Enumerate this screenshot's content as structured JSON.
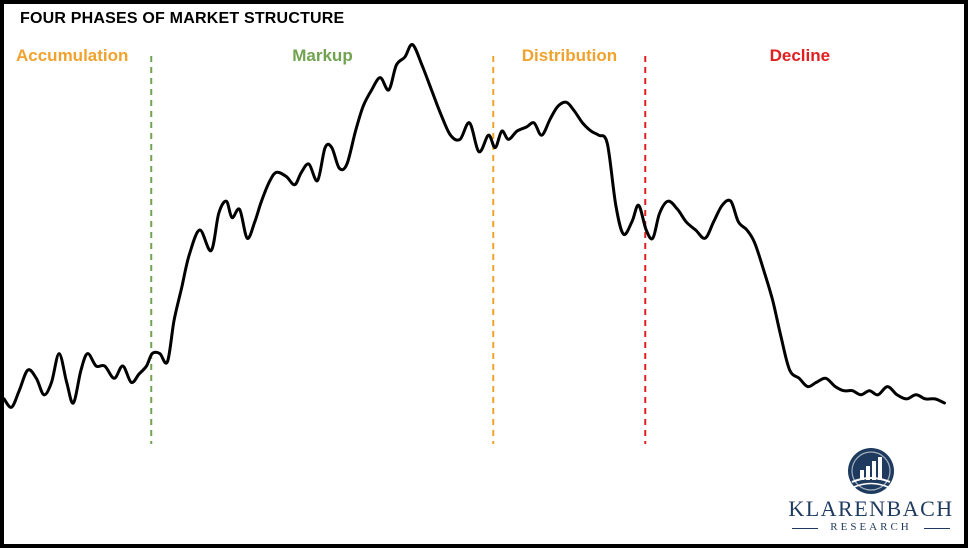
{
  "chart_data": {
    "type": "line",
    "title": "FOUR PHASES OF MARKET STRUCTURE",
    "xlabel": "",
    "ylabel": "",
    "xlim": [
      0,
      100
    ],
    "ylim": [
      0,
      100
    ],
    "grid": false,
    "axes_visible": false,
    "phases": [
      {
        "label": "Accumulation",
        "color": "#f0a22e",
        "start": 0
      },
      {
        "label": "Markup",
        "color": "#70a350",
        "start": 15.5
      },
      {
        "label": "Distribution",
        "color": "#f0a22e",
        "start": 51.5
      },
      {
        "label": "Decline",
        "color": "#e02020",
        "start": 67.5
      }
    ],
    "phase_dividers": [
      {
        "x": 15.5,
        "color": "#70a350"
      },
      {
        "x": 51.5,
        "color": "#f0a22e"
      },
      {
        "x": 67.5,
        "color": "#e02020"
      }
    ],
    "series": [
      {
        "color": "#000000",
        "x": [
          0,
          0.8,
          1.6,
          2.5,
          3.4,
          4.2,
          5.0,
          5.8,
          6.6,
          7.3,
          8.1,
          8.8,
          9.7,
          10.6,
          11.6,
          12.5,
          13.4,
          14.2,
          15.0,
          15.6,
          16.4,
          17.2,
          17.9,
          18.7,
          19.5,
          20.6,
          21.8,
          22.6,
          23.4,
          24.0,
          24.8,
          25.6,
          26.4,
          27.1,
          28.0,
          28.7,
          29.7,
          30.6,
          31.3,
          32.1,
          33.0,
          33.8,
          34.5,
          35.3,
          36.1,
          37.0,
          37.8,
          38.7,
          39.6,
          40.5,
          41.3,
          42.2,
          43.0,
          44.0,
          45.0,
          46.0,
          47.0,
          48.0,
          49.0,
          50.0,
          51.0,
          51.7,
          52.4,
          53.1,
          54.0,
          55.0,
          55.8,
          56.6,
          57.5,
          58.3,
          59.2,
          60.0,
          60.9,
          61.8,
          62.6,
          63.5,
          64.4,
          65.2,
          66.1,
          66.8,
          67.6,
          68.3,
          69.0,
          69.9,
          70.9,
          71.8,
          72.8,
          73.8,
          74.7,
          75.6,
          76.5,
          77.3,
          78.2,
          79.0,
          80.0,
          80.9,
          81.8,
          82.7,
          83.7,
          84.6,
          85.5,
          86.5,
          87.5,
          88.4,
          89.3,
          90.2,
          91.1,
          92.0,
          93.0,
          94.0,
          95.0,
          96.0,
          97.0,
          98.0,
          99.0
        ],
        "y": [
          9,
          7,
          11,
          16,
          14,
          10,
          13,
          20,
          13,
          8,
          16,
          20,
          17,
          17,
          14,
          17,
          13,
          15,
          17,
          20,
          20,
          18,
          28,
          36,
          44,
          50,
          45,
          54,
          57,
          53,
          55,
          48,
          52,
          57,
          62,
          64,
          63,
          61,
          64,
          66,
          62,
          70,
          70,
          65,
          66,
          74,
          80,
          84,
          87,
          84,
          90,
          92,
          95,
          90,
          84,
          78,
          73,
          72,
          76,
          69,
          73,
          70,
          74,
          72,
          74,
          75,
          76,
          73,
          77,
          80,
          81,
          79,
          76,
          74,
          73,
          71,
          56,
          49,
          52,
          56,
          50,
          48,
          54,
          57,
          55,
          52,
          50,
          48,
          52,
          56,
          57,
          52,
          50,
          47,
          40,
          33,
          24,
          16,
          14,
          12,
          13,
          14,
          12,
          11,
          11,
          10,
          11,
          10,
          12,
          10,
          9,
          10,
          9,
          9,
          8
        ]
      }
    ]
  },
  "logo": {
    "name": "KLARENBACH",
    "subtitle": "RESEARCH",
    "color": "#1f3a5f"
  }
}
